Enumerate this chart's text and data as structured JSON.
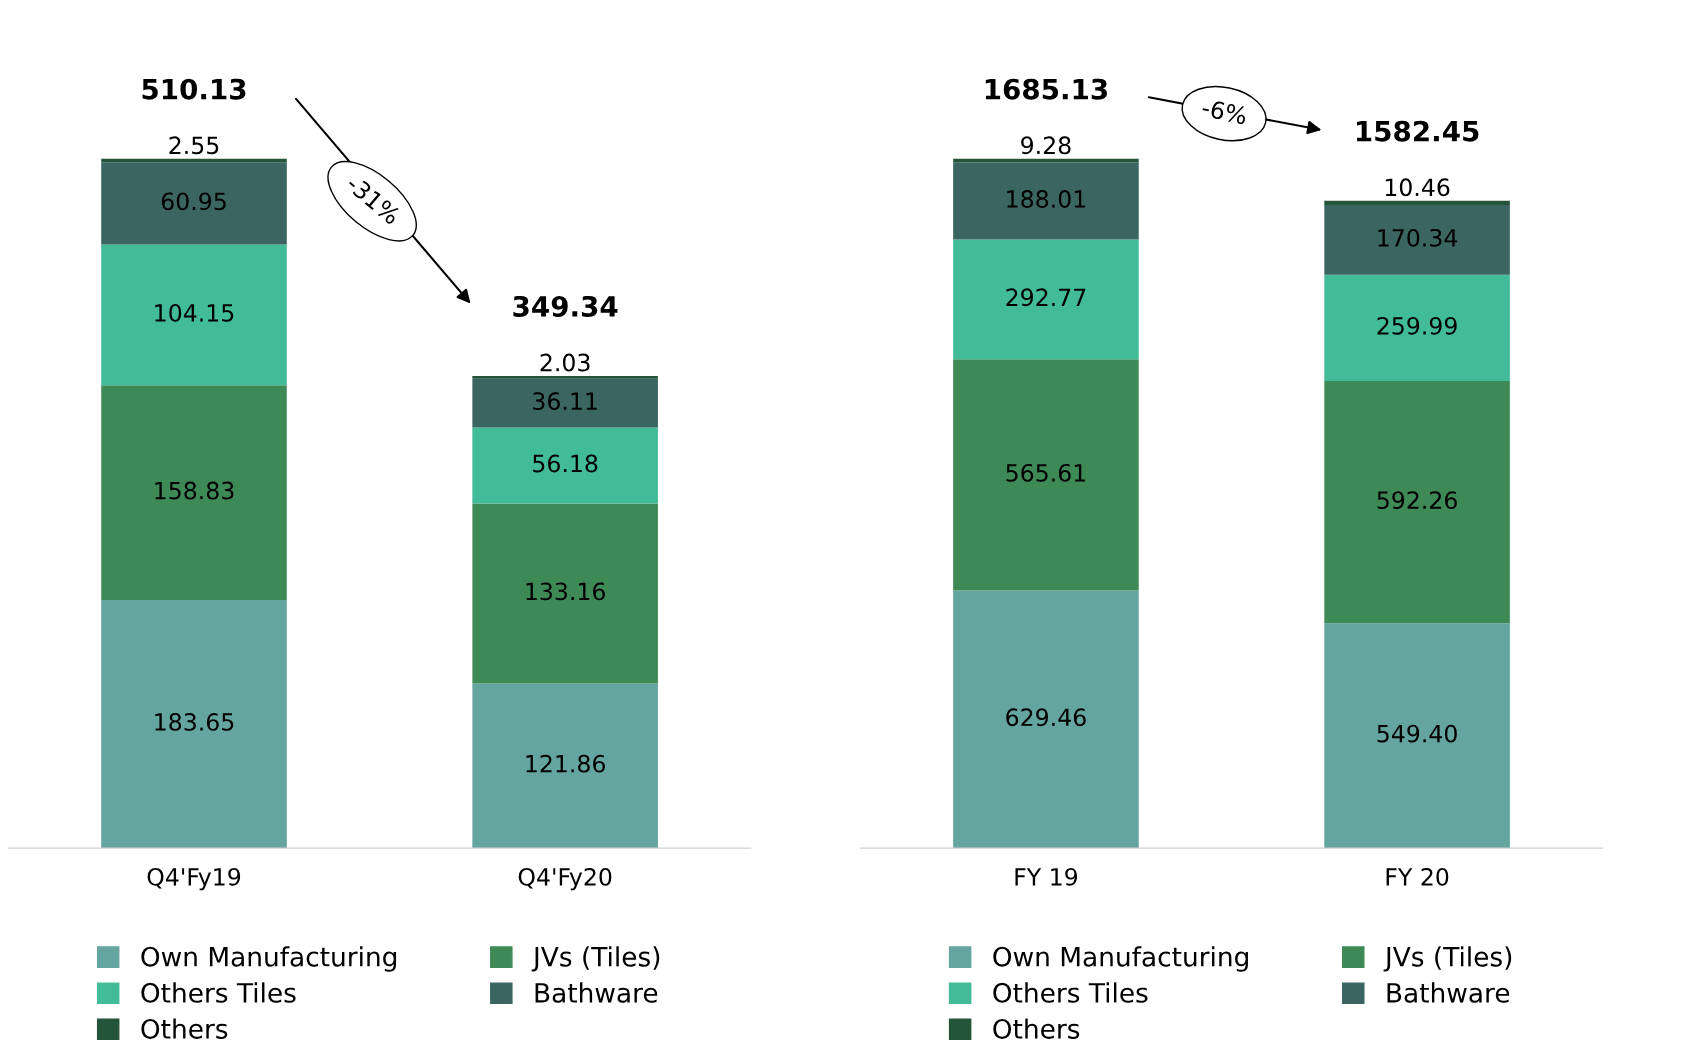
{
  "chart_data": [
    {
      "type": "bar",
      "stacked": true,
      "categories": [
        "Q4'Fy19",
        "Q4'Fy20"
      ],
      "data_labels": true,
      "legend": "bottom",
      "tick_labels": "x",
      "grid": false,
      "series": [
        {
          "name": "Own Manufacturing",
          "color": "#64a59f",
          "values": [
            183.65,
            121.86
          ]
        },
        {
          "name": "JVs (Tiles)",
          "color": "#3e8a56",
          "values": [
            158.83,
            133.16
          ]
        },
        {
          "name": "Others Tiles",
          "color": "#42bb98",
          "values": [
            104.15,
            56.18
          ]
        },
        {
          "name": "Bathware",
          "color": "#3a6561",
          "values": [
            60.95,
            36.11
          ]
        },
        {
          "name": "Others",
          "color": "#24553a",
          "values": [
            2.55,
            2.03
          ]
        }
      ],
      "totals": [
        "510.13",
        "349.34"
      ],
      "annotations": [
        "-31%"
      ]
    },
    {
      "type": "bar",
      "stacked": true,
      "categories": [
        "FY 19",
        "FY 20"
      ],
      "data_labels": true,
      "legend": "bottom",
      "tick_labels": "x",
      "grid": false,
      "series": [
        {
          "name": "Own Manufacturing",
          "color": "#64a59f",
          "values": [
            629.46,
            549.4
          ],
          "value_labels": [
            "629.46",
            "549.40"
          ]
        },
        {
          "name": "JVs (Tiles)",
          "color": "#3e8a56",
          "values": [
            565.61,
            592.26
          ]
        },
        {
          "name": "Others Tiles",
          "color": "#42bb98",
          "values": [
            292.77,
            259.99
          ]
        },
        {
          "name": "Bathware",
          "color": "#3a6561",
          "values": [
            188.01,
            170.34
          ]
        },
        {
          "name": "Others",
          "color": "#24553a",
          "values": [
            9.28,
            10.46
          ]
        }
      ],
      "totals": [
        "1685.13",
        "1582.45"
      ],
      "annotations": [
        "-6%"
      ]
    }
  ]
}
